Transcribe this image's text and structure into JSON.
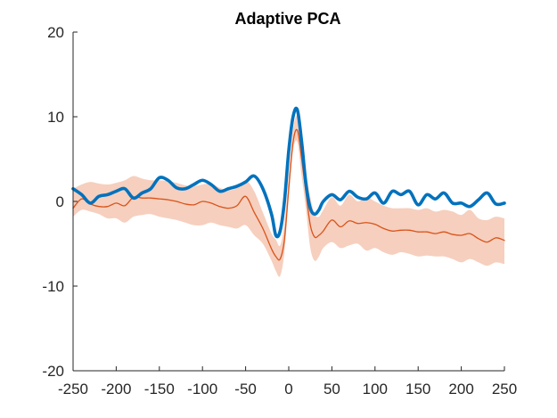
{
  "chart_data": {
    "type": "line",
    "title": "Adaptive PCA",
    "xlabel": "",
    "ylabel": "",
    "xlim": [
      -250,
      250
    ],
    "ylim": [
      -20,
      20
    ],
    "x_ticks": [
      -250,
      -200,
      -150,
      -100,
      -50,
      0,
      50,
      100,
      150,
      200,
      250
    ],
    "y_ticks": [
      -20,
      -10,
      0,
      10,
      20
    ],
    "grid": false,
    "legend": "none",
    "band": {
      "color": "#f6cfbe",
      "x": [
        -250,
        -240,
        -230,
        -220,
        -210,
        -200,
        -190,
        -180,
        -170,
        -160,
        -150,
        -140,
        -130,
        -120,
        -110,
        -100,
        -90,
        -80,
        -70,
        -60,
        -50,
        -40,
        -30,
        -20,
        -15,
        -10,
        -5,
        0,
        5,
        10,
        15,
        20,
        25,
        30,
        35,
        40,
        50,
        60,
        70,
        80,
        90,
        100,
        110,
        120,
        130,
        140,
        150,
        160,
        170,
        180,
        190,
        200,
        210,
        220,
        230,
        240,
        250
      ],
      "upper": [
        1.5,
        2.0,
        2.3,
        2.1,
        2.0,
        2.2,
        2.5,
        3.0,
        2.7,
        2.5,
        2.5,
        2.4,
        2.2,
        1.9,
        1.8,
        2.0,
        2.1,
        1.6,
        1.3,
        1.6,
        2.5,
        1.2,
        -1.3,
        -3.8,
        -4.5,
        -5.2,
        -2.5,
        3.0,
        8.5,
        10.0,
        6.5,
        3.5,
        0.5,
        -1.5,
        -1.8,
        -1.0,
        0.5,
        -0.5,
        0.8,
        0.0,
        0.5,
        0.0,
        -0.5,
        -0.8,
        -0.8,
        -0.8,
        -1.0,
        -0.8,
        -1.2,
        -1.0,
        -1.2,
        -1.6,
        -1.0,
        -2.0,
        -2.2,
        -1.8,
        -2.0
      ],
      "lower": [
        -1.8,
        -1.0,
        -1.2,
        -1.5,
        -2.0,
        -2.0,
        -2.5,
        -1.8,
        -1.6,
        -1.5,
        -1.8,
        -2.0,
        -2.2,
        -2.5,
        -2.8,
        -2.8,
        -2.5,
        -2.8,
        -3.0,
        -3.2,
        -2.8,
        -4.0,
        -5.0,
        -7.0,
        -8.2,
        -8.8,
        -6.0,
        0.5,
        6.0,
        7.0,
        3.0,
        -1.0,
        -5.5,
        -7.0,
        -6.5,
        -5.5,
        -4.8,
        -5.5,
        -5.2,
        -5.0,
        -5.8,
        -5.5,
        -6.0,
        -6.3,
        -6.0,
        -6.2,
        -6.5,
        -6.4,
        -6.5,
        -6.5,
        -6.8,
        -7.2,
        -6.8,
        -7.2,
        -7.6,
        -7.2,
        -7.4
      ]
    },
    "series": [
      {
        "color": "#d95319",
        "x": [
          -250,
          -240,
          -230,
          -220,
          -210,
          -200,
          -190,
          -180,
          -170,
          -160,
          -150,
          -140,
          -130,
          -120,
          -110,
          -100,
          -90,
          -80,
          -70,
          -60,
          -50,
          -40,
          -30,
          -20,
          -15,
          -10,
          -5,
          0,
          5,
          10,
          15,
          20,
          25,
          30,
          35,
          40,
          50,
          60,
          70,
          80,
          90,
          100,
          110,
          120,
          130,
          140,
          150,
          160,
          170,
          180,
          190,
          200,
          210,
          220,
          230,
          240,
          250
        ],
        "values": [
          -0.8,
          0.3,
          -0.3,
          -0.6,
          -0.6,
          -0.2,
          -0.5,
          0.5,
          0.4,
          0.4,
          0.3,
          0.2,
          0.0,
          -0.3,
          -0.4,
          0.0,
          -0.2,
          -0.6,
          -0.8,
          -0.5,
          0.6,
          -1.3,
          -3.2,
          -5.6,
          -6.5,
          -6.8,
          -4.5,
          1.5,
          7.0,
          8.4,
          5.0,
          1.0,
          -2.8,
          -4.2,
          -4.0,
          -3.5,
          -2.2,
          -3.0,
          -2.3,
          -2.6,
          -2.5,
          -2.7,
          -3.2,
          -3.5,
          -3.4,
          -3.4,
          -3.6,
          -3.6,
          -3.8,
          -3.6,
          -3.9,
          -4.0,
          -3.8,
          -4.4,
          -4.8,
          -4.3,
          -4.6
        ]
      },
      {
        "color": "#0072bd",
        "x": [
          -250,
          -240,
          -230,
          -220,
          -210,
          -200,
          -190,
          -180,
          -170,
          -160,
          -150,
          -140,
          -130,
          -120,
          -110,
          -100,
          -90,
          -80,
          -70,
          -60,
          -50,
          -40,
          -30,
          -20,
          -15,
          -10,
          -5,
          0,
          5,
          10,
          15,
          20,
          25,
          30,
          35,
          40,
          50,
          60,
          70,
          80,
          90,
          100,
          110,
          120,
          130,
          140,
          150,
          160,
          170,
          180,
          190,
          200,
          210,
          220,
          230,
          240,
          250
        ],
        "values": [
          1.5,
          0.8,
          -0.2,
          0.6,
          0.8,
          1.2,
          1.5,
          0.4,
          1.0,
          1.5,
          2.8,
          2.5,
          1.6,
          1.5,
          2.0,
          2.5,
          2.0,
          1.2,
          1.5,
          1.8,
          2.3,
          3.0,
          1.5,
          -1.5,
          -4.0,
          -3.5,
          0.0,
          6.0,
          10.0,
          10.8,
          7.0,
          2.0,
          -0.8,
          -1.5,
          -1.0,
          0.0,
          0.8,
          0.2,
          1.2,
          0.5,
          0.3,
          1.0,
          -0.2,
          1.2,
          0.8,
          1.2,
          -0.4,
          0.8,
          0.3,
          1.0,
          -0.2,
          -0.2,
          -0.6,
          0.2,
          1.0,
          -0.3,
          -0.2
        ]
      }
    ]
  }
}
